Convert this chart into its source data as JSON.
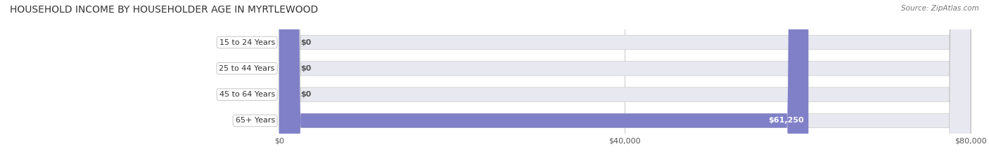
{
  "title": "HOUSEHOLD INCOME BY HOUSEHOLDER AGE IN MYRTLEWOOD",
  "source": "Source: ZipAtlas.com",
  "categories": [
    "15 to 24 Years",
    "25 to 44 Years",
    "45 to 64 Years",
    "65+ Years"
  ],
  "values": [
    0,
    0,
    0,
    61250
  ],
  "xlim": [
    0,
    80000
  ],
  "xticks": [
    0,
    40000,
    80000
  ],
  "xtick_labels": [
    "$0",
    "$40,000",
    "$80,000"
  ],
  "bar_colors": [
    "#7ab3d4",
    "#b89ac8",
    "#6ecfcc",
    "#8080c8"
  ],
  "bar_bg_color": "#e8e8f0",
  "bar_height": 0.55,
  "label_color": "#555555",
  "title_color": "#333333",
  "value_label_color": "#ffffff",
  "value_label_color_outside": "#555555",
  "background_color": "#ffffff",
  "grid_color": "#cccccc"
}
